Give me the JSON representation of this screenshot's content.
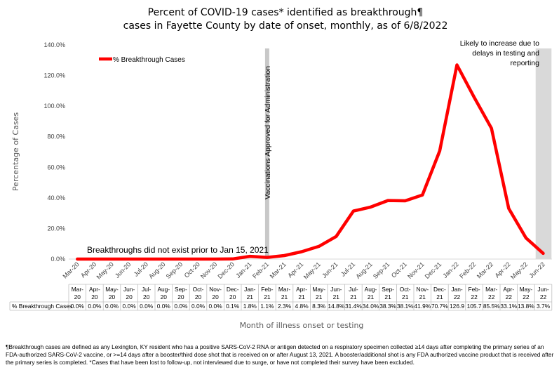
{
  "chart_data": {
    "type": "line",
    "title": "Percent of COVID-19 cases* identified as breakthrough¶ cases in Fayette County by date of onset, monthly, as of 6/8/2022",
    "xlabel": "Month of illness onset or testing",
    "ylabel": "Percentage of Cases",
    "ylim": [
      0,
      140
    ],
    "yticks": [
      "0.0%",
      "20.0%",
      "40.0%",
      "60.0%",
      "80.0%",
      "100.0%",
      "120.0%",
      "140.0%"
    ],
    "grid": false,
    "legend_position": "top-left",
    "line_color": "#ff0000",
    "shade_color": "#d9d9d9",
    "categories": [
      "Mar-20",
      "Apr-20",
      "May-20",
      "Jun-20",
      "Jul-20",
      "Aug-20",
      "Sep-20",
      "Oct-20",
      "Nov-20",
      "Dec-20",
      "Jan-21",
      "Feb-21",
      "Mar-21",
      "Apr-21",
      "May-21",
      "Jun-21",
      "Jul-21",
      "Aug-21",
      "Sep-21",
      "Oct-21",
      "Nov-21",
      "Dec-21",
      "Jan-22",
      "Feb-22",
      "Mar-22",
      "Apr-22",
      "May-22",
      "Jun-22"
    ],
    "series": [
      {
        "name": "% Breakthrough Cases",
        "values": [
          0,
          0,
          0,
          0,
          0,
          0,
          0,
          0,
          0,
          0.1,
          1.8,
          1.1,
          2.3,
          4.8,
          8.3,
          14.8,
          31.4,
          34.0,
          38.3,
          38.1,
          41.9,
          70.7,
          126.9,
          105.7,
          85.5,
          33.1,
          13.8,
          3.7
        ],
        "labels": [
          "0.0%",
          "0.0%",
          "0.0%",
          "0.0%",
          "0.0%",
          "0.0%",
          "0.0%",
          "0.0%",
          "0.0%",
          "0.1%",
          "1.8%",
          "1.1%",
          "2.3%",
          "4.8%",
          "8.3%",
          "14.8%",
          "31.4%",
          "34.0%",
          "38.3%",
          "38.1%",
          "41.9%",
          "70.7%",
          "126.9",
          "105.7",
          "85.5%",
          "33.1%",
          "13.8%",
          "3.7%"
        ]
      }
    ],
    "table_header_lines": [
      [
        "Mar-",
        "20"
      ],
      [
        "Apr-",
        "20"
      ],
      [
        "May-",
        "20"
      ],
      [
        "Jun-",
        "20"
      ],
      [
        "Jul-",
        "20"
      ],
      [
        "Aug-",
        "20"
      ],
      [
        "Sep-",
        "20"
      ],
      [
        "Oct-",
        "20"
      ],
      [
        "Nov-",
        "20"
      ],
      [
        "Dec-",
        "20"
      ],
      [
        "Jan-",
        "21"
      ],
      [
        "Feb-",
        "21"
      ],
      [
        "Mar-",
        "21"
      ],
      [
        "Apr-",
        "21"
      ],
      [
        "May-",
        "21"
      ],
      [
        "Jun-",
        "21"
      ],
      [
        "Jul-",
        "21"
      ],
      [
        "Aug-",
        "21"
      ],
      [
        "Sep-",
        "21"
      ],
      [
        "Oct-",
        "21"
      ],
      [
        "Nov-",
        "21"
      ],
      [
        "Dec-",
        "21"
      ],
      [
        "Jan-",
        "22"
      ],
      [
        "Feb-",
        "22"
      ],
      [
        "Mar-",
        "22"
      ],
      [
        "Apr-",
        "22"
      ],
      [
        "May-",
        "22"
      ],
      [
        "Jun-",
        "22"
      ]
    ],
    "annotations": {
      "vaccination_line_label": "Vaccinations Approved for Administration",
      "vaccination_at": "Feb-21",
      "pre_breakthrough_text": "Breakthroughs did not exist prior to Jan 15, 2021",
      "shaded_at": "Jun-22",
      "shaded_text": [
        "Likely to increase due to",
        "delays in testing and",
        "reporting"
      ]
    }
  },
  "footnote": "¶Breakthrough cases are defined as any Lexington, KY resident who has a positive SARS-CoV-2 RNA or antigen detected on a respiratory specimen collected ≥14 days after completing the primary series of an FDA-authorized SARS-CoV-2 vaccine, or >=14 days after a booster/third dose shot that is received on or after August 13, 2021.  A booster/additional shot is any FDA authorized vaccine product that is received after the primary series is completed. *Cases that have been lost to follow-up, not interviewed due to surge, or have not completed their survey have been excluded."
}
